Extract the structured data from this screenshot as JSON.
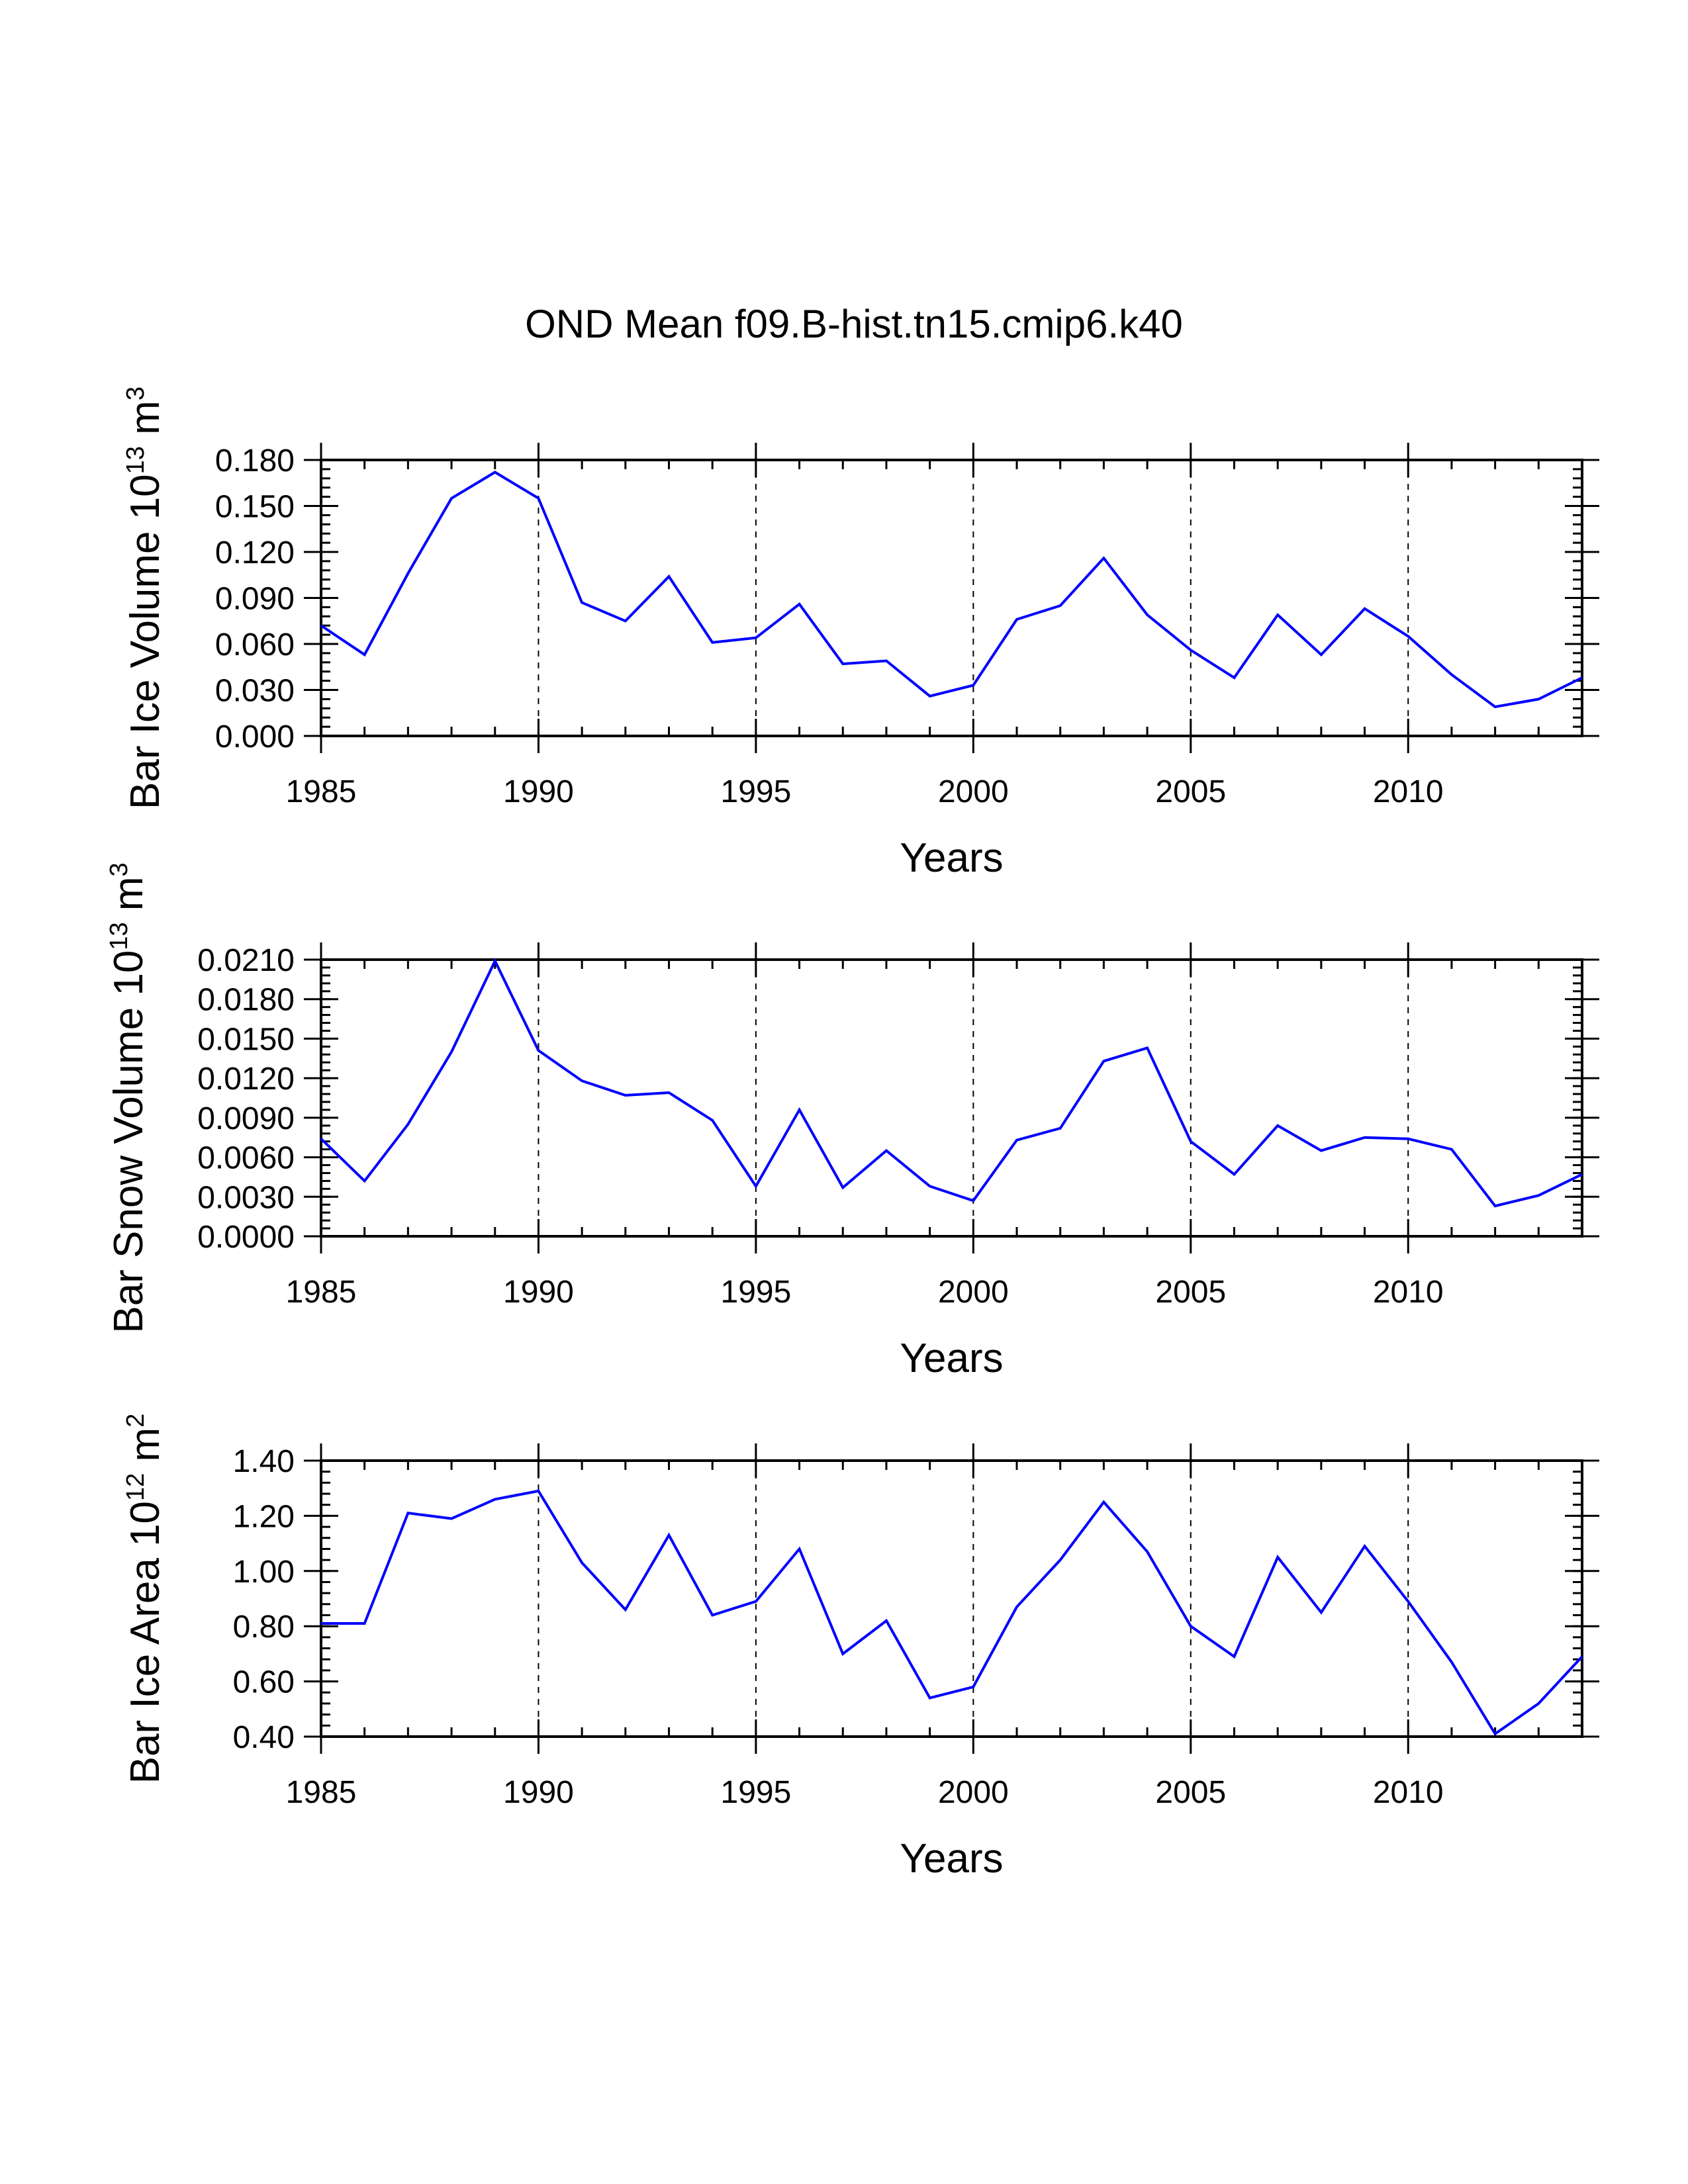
{
  "title": "OND Mean f09.B-hist.tn15.cmip6.k40",
  "colors": {
    "line": "#0000ff",
    "axis": "#000000",
    "grid": "#000000"
  },
  "chart_data": [
    {
      "type": "line",
      "xlabel": "Years",
      "ylabel_main": "Bar Ice Volume 10",
      "ylabel_exp": "13",
      "ylabel_unit": "m",
      "ylabel_unit_exp": "3",
      "xlim": [
        1985,
        2014
      ],
      "ylim": [
        0.0,
        0.18
      ],
      "xticks": [
        1985,
        1990,
        1995,
        2000,
        2005,
        2010
      ],
      "yticks": [
        "0.000",
        "0.030",
        "0.060",
        "0.090",
        "0.120",
        "0.150",
        "0.180"
      ],
      "ytick_values": [
        0.0,
        0.03,
        0.06,
        0.09,
        0.12,
        0.15,
        0.18
      ],
      "ytick_minor_step": 0.006,
      "grid": "dashed vertical at major x ticks",
      "x": [
        1985,
        1986,
        1987,
        1988,
        1989,
        1990,
        1991,
        1992,
        1993,
        1994,
        1995,
        1996,
        1997,
        1998,
        1999,
        2000,
        2001,
        2002,
        2003,
        2004,
        2005,
        2006,
        2007,
        2008,
        2009,
        2010,
        2011,
        2012,
        2013,
        2014
      ],
      "values": [
        0.072,
        0.053,
        0.106,
        0.155,
        0.172,
        0.155,
        0.087,
        0.075,
        0.104,
        0.061,
        0.064,
        0.086,
        0.047,
        0.049,
        0.026,
        0.033,
        0.076,
        0.085,
        0.116,
        0.079,
        0.056,
        0.038,
        0.079,
        0.053,
        0.083,
        0.065,
        0.04,
        0.019,
        0.024,
        0.038
      ]
    },
    {
      "type": "line",
      "xlabel": "Years",
      "ylabel_main": "Bar Snow Volume 10",
      "ylabel_exp": "13",
      "ylabel_unit": "m",
      "ylabel_unit_exp": "3",
      "xlim": [
        1985,
        2014
      ],
      "ylim": [
        0.0,
        0.021
      ],
      "xticks": [
        1985,
        1990,
        1995,
        2000,
        2005,
        2010
      ],
      "yticks": [
        "0.0000",
        "0.0030",
        "0.0060",
        "0.0090",
        "0.0120",
        "0.0150",
        "0.0180",
        "0.0210"
      ],
      "ytick_values": [
        0.0,
        0.003,
        0.006,
        0.009,
        0.012,
        0.015,
        0.018,
        0.021
      ],
      "ytick_minor_step": 0.0006,
      "grid": "dashed vertical at major x ticks",
      "x": [
        1985,
        1986,
        1987,
        1988,
        1989,
        1990,
        1991,
        1992,
        1993,
        1994,
        1995,
        1996,
        1997,
        1998,
        1999,
        2000,
        2001,
        2002,
        2003,
        2004,
        2005,
        2006,
        2007,
        2008,
        2009,
        2010,
        2011,
        2012,
        2013,
        2014
      ],
      "values": [
        0.0074,
        0.0042,
        0.0085,
        0.014,
        0.0209,
        0.0141,
        0.0118,
        0.0107,
        0.0109,
        0.0088,
        0.0038,
        0.0096,
        0.0037,
        0.0065,
        0.0038,
        0.0027,
        0.0073,
        0.0082,
        0.0133,
        0.0143,
        0.0072,
        0.0047,
        0.0084,
        0.0065,
        0.0075,
        0.0074,
        0.0066,
        0.0023,
        0.0031,
        0.0047
      ]
    },
    {
      "type": "line",
      "xlabel": "Years",
      "ylabel_main": "Bar Ice Area 10",
      "ylabel_exp": "12",
      "ylabel_unit": "m",
      "ylabel_unit_exp": "2",
      "xlim": [
        1985,
        2014
      ],
      "ylim": [
        0.4,
        1.4
      ],
      "xticks": [
        1985,
        1990,
        1995,
        2000,
        2005,
        2010
      ],
      "yticks": [
        "0.40",
        "0.60",
        "0.80",
        "1.00",
        "1.20",
        "1.40"
      ],
      "ytick_values": [
        0.4,
        0.6,
        0.8,
        1.0,
        1.2,
        1.4
      ],
      "ytick_minor_step": 0.04,
      "grid": "dashed vertical at major x ticks",
      "x": [
        1985,
        1986,
        1987,
        1988,
        1989,
        1990,
        1991,
        1992,
        1993,
        1994,
        1995,
        1996,
        1997,
        1998,
        1999,
        2000,
        2001,
        2002,
        2003,
        2004,
        2005,
        2006,
        2007,
        2008,
        2009,
        2010,
        2011,
        2012,
        2013,
        2014
      ],
      "values": [
        0.81,
        0.81,
        1.21,
        1.19,
        1.26,
        1.29,
        1.03,
        0.86,
        1.13,
        0.84,
        0.89,
        1.08,
        0.7,
        0.82,
        0.54,
        0.58,
        0.87,
        1.04,
        1.25,
        1.07,
        0.8,
        0.69,
        1.05,
        0.85,
        1.09,
        0.89,
        0.67,
        0.41,
        0.52,
        0.69
      ]
    }
  ]
}
